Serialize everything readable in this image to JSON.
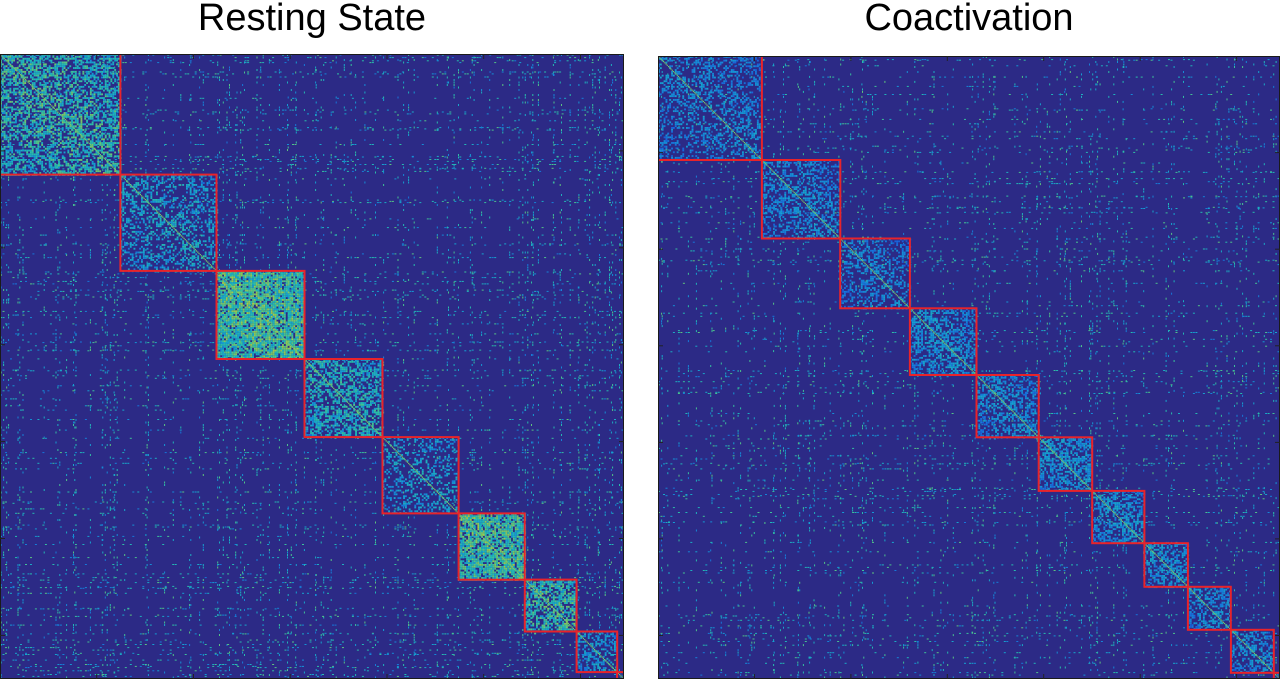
{
  "colors": {
    "background": "#2c2a86",
    "module_outline": "#e8232a",
    "axes_frame": "#1a1a1a"
  },
  "chart_data": [
    {
      "type": "heatmap",
      "title": "Resting State",
      "colormap": "parula",
      "n_nodes": 1000,
      "base_density": 0.025,
      "max_value": 1.0,
      "modules": [
        {
          "start": 0,
          "end": 193,
          "density": 0.55,
          "strength": 0.62
        },
        {
          "start": 193,
          "end": 347,
          "density": 0.35,
          "strength": 0.45
        },
        {
          "start": 347,
          "end": 488,
          "density": 0.85,
          "strength": 0.7
        },
        {
          "start": 488,
          "end": 613,
          "density": 0.55,
          "strength": 0.55
        },
        {
          "start": 613,
          "end": 735,
          "density": 0.3,
          "strength": 0.42
        },
        {
          "start": 735,
          "end": 841,
          "density": 0.8,
          "strength": 0.68
        },
        {
          "start": 841,
          "end": 924,
          "density": 0.6,
          "strength": 0.65
        },
        {
          "start": 924,
          "end": 989,
          "density": 0.35,
          "strength": 0.4
        },
        {
          "start": 989,
          "end": 1000,
          "density": 0.3,
          "strength": 0.4
        }
      ]
    },
    {
      "type": "heatmap",
      "title": "Coactivation",
      "colormap": "parula",
      "n_nodes": 1000,
      "base_density": 0.02,
      "max_value": 1.0,
      "modules": [
        {
          "start": 0,
          "end": 167,
          "density": 0.35,
          "strength": 0.32
        },
        {
          "start": 167,
          "end": 293,
          "density": 0.4,
          "strength": 0.32
        },
        {
          "start": 293,
          "end": 405,
          "density": 0.35,
          "strength": 0.3
        },
        {
          "start": 405,
          "end": 512,
          "density": 0.5,
          "strength": 0.36
        },
        {
          "start": 512,
          "end": 612,
          "density": 0.45,
          "strength": 0.34
        },
        {
          "start": 612,
          "end": 698,
          "density": 0.55,
          "strength": 0.38
        },
        {
          "start": 698,
          "end": 782,
          "density": 0.5,
          "strength": 0.36
        },
        {
          "start": 782,
          "end": 852,
          "density": 0.5,
          "strength": 0.36
        },
        {
          "start": 852,
          "end": 921,
          "density": 0.45,
          "strength": 0.34
        },
        {
          "start": 921,
          "end": 990,
          "density": 0.45,
          "strength": 0.34
        },
        {
          "start": 990,
          "end": 1000,
          "density": 0.3,
          "strength": 0.3
        }
      ]
    }
  ]
}
